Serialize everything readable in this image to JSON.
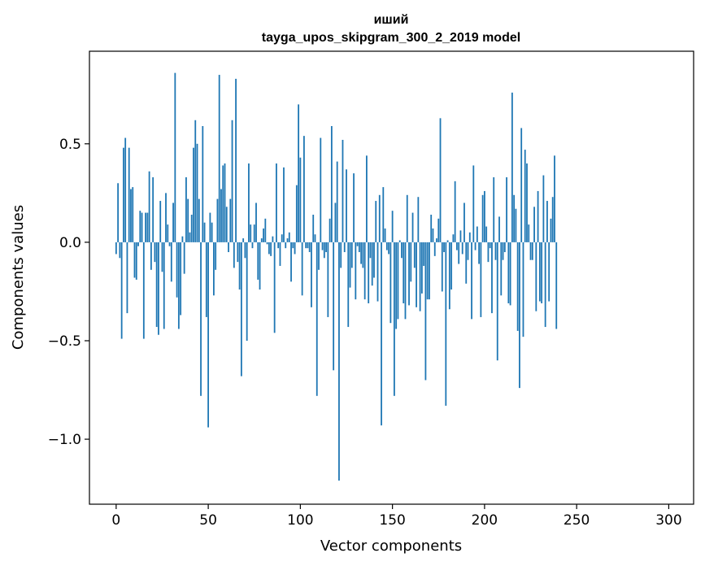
{
  "chart_data": {
    "type": "bar",
    "title": "иший",
    "subtitle": "tayga_upos_skipgram_300_2_2019 model",
    "xlabel": "Vector components",
    "ylabel": "Components values",
    "xlim": [
      -14.5,
      313.5
    ],
    "ylim": [
      -1.33,
      0.97
    ],
    "xticks": [
      0,
      50,
      100,
      150,
      200,
      250,
      300
    ],
    "xtick_labels": [
      "0",
      "50",
      "100",
      "150",
      "200",
      "250",
      "300"
    ],
    "yticks": [
      -1.0,
      -0.5,
      0.0,
      0.5
    ],
    "ytick_labels": [
      "−1.0",
      "−0.5",
      "0.0",
      "0.5"
    ],
    "bar_color": "#1f77b4",
    "grid": false,
    "legend": "none",
    "values": [
      -0.06,
      0.3,
      -0.08,
      -0.49,
      0.48,
      0.53,
      -0.36,
      0.48,
      0.27,
      0.28,
      -0.18,
      -0.19,
      -0.02,
      0.16,
      0.15,
      -0.49,
      0.15,
      0.15,
      0.36,
      -0.14,
      0.33,
      -0.1,
      -0.43,
      -0.47,
      0.21,
      -0.15,
      -0.44,
      0.25,
      0.09,
      -0.02,
      -0.2,
      0.2,
      0.86,
      -0.28,
      -0.44,
      -0.37,
      0.03,
      -0.16,
      0.33,
      0.22,
      0.05,
      0.14,
      0.48,
      0.62,
      0.5,
      0.22,
      -0.78,
      0.59,
      0.1,
      -0.38,
      -0.94,
      0.15,
      0.1,
      -0.27,
      -0.14,
      0.22,
      0.85,
      0.27,
      0.39,
      0.4,
      0.18,
      -0.05,
      0.22,
      0.62,
      -0.13,
      0.83,
      -0.1,
      -0.24,
      -0.68,
      0.02,
      -0.08,
      -0.5,
      0.4,
      0.09,
      -0.03,
      0.09,
      0.2,
      -0.19,
      -0.24,
      0.02,
      0.07,
      0.12,
      -0.01,
      -0.06,
      -0.07,
      0.03,
      -0.46,
      0.4,
      -0.03,
      -0.12,
      0.04,
      0.38,
      -0.03,
      0.02,
      0.05,
      -0.2,
      -0.03,
      -0.06,
      0.29,
      0.7,
      0.43,
      -0.27,
      0.54,
      -0.03,
      -0.03,
      -0.05,
      -0.33,
      0.14,
      0.04,
      -0.78,
      -0.14,
      0.53,
      -0.04,
      -0.08,
      -0.05,
      -0.38,
      0.12,
      0.59,
      -0.65,
      0.2,
      0.41,
      -1.21,
      -0.13,
      0.52,
      -0.05,
      0.37,
      -0.43,
      -0.23,
      -0.13,
      0.35,
      -0.29,
      -0.02,
      -0.05,
      -0.11,
      -0.13,
      -0.29,
      0.44,
      -0.31,
      -0.08,
      -0.22,
      -0.18,
      0.21,
      -0.3,
      0.24,
      -0.93,
      0.28,
      0.07,
      -0.04,
      -0.06,
      -0.41,
      0.16,
      -0.78,
      -0.44,
      -0.39,
      0.01,
      -0.08,
      -0.31,
      -0.39,
      0.24,
      -0.32,
      -0.2,
      0.15,
      -0.13,
      -0.33,
      0.23,
      -0.35,
      -0.26,
      -0.12,
      -0.7,
      -0.29,
      -0.29,
      0.14,
      0.07,
      -0.07,
      0.02,
      0.12,
      0.63,
      -0.25,
      -0.05,
      -0.83,
      0.01,
      -0.34,
      -0.24,
      0.04,
      0.31,
      -0.04,
      -0.11,
      0.06,
      -0.06,
      0.2,
      -0.21,
      -0.09,
      0.05,
      -0.39,
      0.39,
      -0.04,
      0.08,
      -0.11,
      -0.38,
      0.24,
      0.26,
      0.08,
      -0.1,
      -0.03,
      -0.36,
      0.33,
      -0.09,
      -0.6,
      0.13,
      -0.27,
      -0.09,
      -0.05,
      0.33,
      -0.31,
      -0.32,
      0.76,
      0.24,
      0.17,
      -0.45,
      -0.74,
      0.58,
      -0.48,
      0.47,
      0.4,
      0.09,
      -0.09,
      -0.09,
      0.18,
      -0.35,
      0.26,
      -0.3,
      -0.31,
      0.34,
      -0.43,
      0.21,
      -0.3,
      0.12,
      0.23,
      0.44,
      -0.44
    ]
  }
}
